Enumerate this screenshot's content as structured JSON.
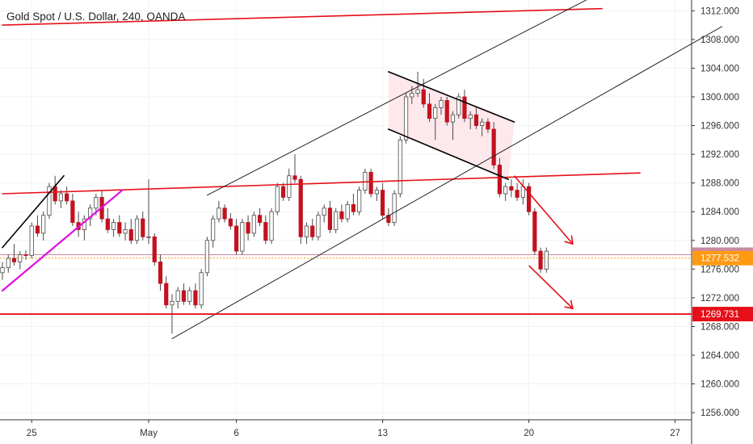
{
  "chart_data": {
    "type": "candlestick",
    "title": "Gold Spot / U.S. Dollar, 240, OANDA",
    "ylim": [
      1255,
      1313.5
    ],
    "y_ticks": [
      1256,
      1260,
      1264,
      1268,
      1272,
      1276,
      1280,
      1284,
      1288,
      1292,
      1296,
      1300,
      1304,
      1308,
      1312
    ],
    "y_tick_labels": [
      "1256.000",
      "1260.000",
      "1264.000",
      "1268.000",
      "1272.000",
      "1276.000",
      "1280.000",
      "1284.000",
      "1288.000",
      "1292.000",
      "1296.000",
      "1300.000",
      "1304.000",
      "1308.000",
      "1312.000"
    ],
    "x_unit": "trading day index (0 = Apr 24)",
    "x_ticks": [
      {
        "x": 1.0,
        "label": "25"
      },
      {
        "x": 5.0,
        "label": "May"
      },
      {
        "x": 8.0,
        "label": "6"
      },
      {
        "x": 13.0,
        "label": "13"
      },
      {
        "x": 18.0,
        "label": "20"
      },
      {
        "x": 23.0,
        "label": "27"
      }
    ],
    "bull_color": "#ffffff",
    "bear_color": "#c2121f",
    "wick_color": "#4a4a4a",
    "candles": [
      [
        1275.5,
        1277.0,
        1274.5,
        1276.2
      ],
      [
        1276.2,
        1278.0,
        1275.5,
        1277.5
      ],
      [
        1277.5,
        1279.5,
        1276.5,
        1277.0
      ],
      [
        1277.0,
        1278.5,
        1276.0,
        1278.0
      ],
      [
        1278.0,
        1278.6,
        1277.3,
        1277.9
      ],
      [
        1277.9,
        1282.5,
        1277.5,
        1282.0
      ],
      [
        1282.0,
        1283.5,
        1280.5,
        1281.0
      ],
      [
        1281.0,
        1284.0,
        1280.0,
        1283.5
      ],
      [
        1283.5,
        1288.0,
        1283.0,
        1287.5
      ],
      [
        1287.5,
        1289.0,
        1285.0,
        1285.5
      ],
      [
        1285.5,
        1287.0,
        1284.5,
        1286.5
      ],
      [
        1286.5,
        1287.5,
        1285.0,
        1285.5
      ],
      [
        1285.5,
        1286.5,
        1282.0,
        1282.5
      ],
      [
        1282.5,
        1284.0,
        1280.5,
        1281.5
      ],
      [
        1281.5,
        1283.5,
        1280.0,
        1283.0
      ],
      [
        1283.0,
        1285.0,
        1282.0,
        1284.5
      ],
      [
        1284.5,
        1286.5,
        1283.5,
        1286.0
      ],
      [
        1286.0,
        1287.0,
        1282.5,
        1283.0
      ],
      [
        1283.0,
        1284.5,
        1281.0,
        1281.5
      ],
      [
        1281.5,
        1283.0,
        1280.5,
        1282.5
      ],
      [
        1282.5,
        1283.5,
        1280.5,
        1281.0
      ],
      [
        1281.0,
        1282.5,
        1280.0,
        1281.5
      ],
      [
        1281.5,
        1283.0,
        1279.5,
        1280.0
      ],
      [
        1280.0,
        1283.5,
        1279.5,
        1283.0
      ],
      [
        1283.0,
        1284.0,
        1280.0,
        1280.5
      ],
      [
        1280.5,
        1288.5,
        1279.5,
        1280.5
      ],
      [
        1280.5,
        1281.0,
        1276.5,
        1277.0
      ],
      [
        1277.0,
        1278.0,
        1273.0,
        1274.0
      ],
      [
        1274.0,
        1275.0,
        1270.5,
        1271.0
      ],
      [
        1271.0,
        1272.5,
        1267.0,
        1271.5
      ],
      [
        1271.5,
        1273.5,
        1270.5,
        1273.0
      ],
      [
        1273.0,
        1274.0,
        1271.0,
        1271.5
      ],
      [
        1271.5,
        1273.5,
        1271.0,
        1273.0
      ],
      [
        1273.0,
        1274.0,
        1270.5,
        1271.0
      ],
      [
        1271.0,
        1276.0,
        1270.5,
        1275.5
      ],
      [
        1275.5,
        1280.5,
        1275.0,
        1280.0
      ],
      [
        1280.0,
        1283.5,
        1279.0,
        1283.0
      ],
      [
        1283.0,
        1285.5,
        1282.5,
        1284.5
      ],
      [
        1284.5,
        1285.0,
        1282.5,
        1283.0
      ],
      [
        1283.0,
        1283.8,
        1281.5,
        1282.0
      ],
      [
        1282.0,
        1283.0,
        1278.0,
        1278.5
      ],
      [
        1278.5,
        1283.0,
        1278.0,
        1282.5
      ],
      [
        1282.5,
        1283.5,
        1280.0,
        1281.0
      ],
      [
        1281.0,
        1284.0,
        1280.5,
        1283.5
      ],
      [
        1283.5,
        1284.5,
        1282.0,
        1282.5
      ],
      [
        1282.5,
        1283.5,
        1279.5,
        1280.0
      ],
      [
        1280.0,
        1284.5,
        1279.5,
        1284.0
      ],
      [
        1284.0,
        1288.0,
        1283.5,
        1287.5
      ],
      [
        1287.5,
        1288.0,
        1285.5,
        1286.0
      ],
      [
        1286.0,
        1290.0,
        1285.5,
        1289.0
      ],
      [
        1289.0,
        1292.0,
        1288.0,
        1288.5
      ],
      [
        1288.5,
        1289.0,
        1279.5,
        1280.5
      ],
      [
        1280.5,
        1282.5,
        1279.5,
        1282.0
      ],
      [
        1282.0,
        1283.0,
        1280.0,
        1280.5
      ],
      [
        1280.5,
        1284.0,
        1280.0,
        1283.5
      ],
      [
        1283.5,
        1285.0,
        1282.5,
        1284.5
      ],
      [
        1284.5,
        1285.5,
        1281.0,
        1281.5
      ],
      [
        1281.5,
        1284.5,
        1281.0,
        1284.0
      ],
      [
        1284.0,
        1285.0,
        1282.5,
        1283.0
      ],
      [
        1283.0,
        1285.5,
        1282.5,
        1285.0
      ],
      [
        1285.0,
        1286.5,
        1283.5,
        1284.0
      ],
      [
        1284.0,
        1287.5,
        1283.5,
        1287.0
      ],
      [
        1287.0,
        1290.0,
        1286.5,
        1289.5
      ],
      [
        1289.5,
        1290.0,
        1286.0,
        1286.5
      ],
      [
        1286.5,
        1287.5,
        1285.5,
        1287.0
      ],
      [
        1287.0,
        1288.0,
        1283.0,
        1283.5
      ],
      [
        1283.5,
        1284.5,
        1282.0,
        1282.5
      ],
      [
        1282.5,
        1287.0,
        1282.0,
        1286.5
      ],
      [
        1286.5,
        1294.5,
        1286.0,
        1294.0
      ],
      [
        1294.0,
        1300.5,
        1293.5,
        1300.0
      ],
      [
        1300.0,
        1301.5,
        1299.0,
        1300.5
      ],
      [
        1300.5,
        1303.5,
        1300.0,
        1301.0
      ],
      [
        1301.0,
        1302.5,
        1298.5,
        1299.0
      ],
      [
        1299.0,
        1300.5,
        1296.5,
        1297.0
      ],
      [
        1297.0,
        1299.0,
        1294.0,
        1298.5
      ],
      [
        1298.5,
        1300.0,
        1297.5,
        1299.5
      ],
      [
        1299.5,
        1300.0,
        1296.0,
        1296.5
      ],
      [
        1296.5,
        1298.0,
        1294.0,
        1297.5
      ],
      [
        1297.5,
        1300.5,
        1297.0,
        1300.0
      ],
      [
        1300.0,
        1301.0,
        1296.5,
        1297.0
      ],
      [
        1297.0,
        1298.0,
        1295.5,
        1297.5
      ],
      [
        1297.5,
        1298.5,
        1295.5,
        1296.0
      ],
      [
        1296.0,
        1297.0,
        1294.5,
        1296.5
      ],
      [
        1296.5,
        1297.0,
        1295.0,
        1295.5
      ],
      [
        1295.5,
        1296.5,
        1290.0,
        1290.5
      ],
      [
        1290.5,
        1291.5,
        1286.0,
        1286.5
      ],
      [
        1286.5,
        1288.0,
        1285.5,
        1287.5
      ],
      [
        1287.5,
        1288.5,
        1286.0,
        1287.0
      ],
      [
        1287.0,
        1288.0,
        1285.5,
        1286.0
      ],
      [
        1286.0,
        1288.5,
        1285.0,
        1287.5
      ],
      [
        1287.5,
        1288.0,
        1283.5,
        1284.0
      ],
      [
        1284.0,
        1284.5,
        1278.0,
        1278.5
      ],
      [
        1278.5,
        1279.0,
        1275.5,
        1276.0
      ],
      [
        1276.0,
        1279.0,
        1275.5,
        1278.5
      ]
    ],
    "candle_x_start": 0.0,
    "candle_x_step": 0.2,
    "last_price": "1277.532",
    "price_badges": [
      {
        "label": "1278.007",
        "value": 1278.007,
        "bg": "#c98aa3",
        "fg": "#ffffff"
      },
      {
        "label": "1277.532",
        "value": 1277.532,
        "bg": "#ff9a12",
        "fg": "#ffffff"
      },
      {
        "label": "1269.731",
        "value": 1269.731,
        "bg": "#e5101a",
        "fg": "#ffffff"
      }
    ],
    "annotations": {
      "support_line": {
        "y": 1269.731,
        "color": "#e5101a"
      },
      "dotted_line": {
        "y": 1277.532,
        "color": "#ff9a12"
      },
      "purple_line": {
        "y": 1278.007,
        "color": "#c98aa3"
      },
      "top_red_line": {
        "x1": 0.0,
        "y1": 1310.0,
        "x2": 20.5,
        "y2": 1312.3,
        "color": "#e5101a"
      },
      "mid_red_line": {
        "x1": 0.0,
        "y1": 1286.5,
        "x2": 21.8,
        "y2": 1289.4,
        "color": "#e5101a"
      },
      "black_short_line": {
        "x1": 0.0,
        "y1": 1279.0,
        "x2": 2.1,
        "y2": 1289.0,
        "color": "#000000"
      },
      "magenta_line": {
        "x1": 0.0,
        "y1": 1273.0,
        "x2": 4.1,
        "y2": 1287.0,
        "color": "#e010e0"
      },
      "channel_upper": {
        "x1": 7.0,
        "y1": 1286.3,
        "x2": 20.2,
        "y2": 1314.0,
        "color": "#222222"
      },
      "channel_lower": {
        "x1": 5.8,
        "y1": 1266.3,
        "x2": 24.6,
        "y2": 1309.8,
        "color": "#222222"
      },
      "flag_upper": {
        "x1": 13.2,
        "y1": 1303.5,
        "x2": 17.5,
        "y2": 1296.5,
        "color": "#000000"
      },
      "flag_lower": {
        "x1": 13.2,
        "y1": 1295.5,
        "x2": 17.3,
        "y2": 1288.5,
        "color": "#000000"
      },
      "flag_fill": "#fde8ec",
      "arrow1": {
        "x1": 17.5,
        "y1": 1289.0,
        "x2": 19.5,
        "y2": 1279.5,
        "color": "#e5101a"
      },
      "arrow2": {
        "x1": 18.0,
        "y1": 1276.5,
        "x2": 19.5,
        "y2": 1270.5,
        "color": "#e5101a"
      }
    }
  }
}
